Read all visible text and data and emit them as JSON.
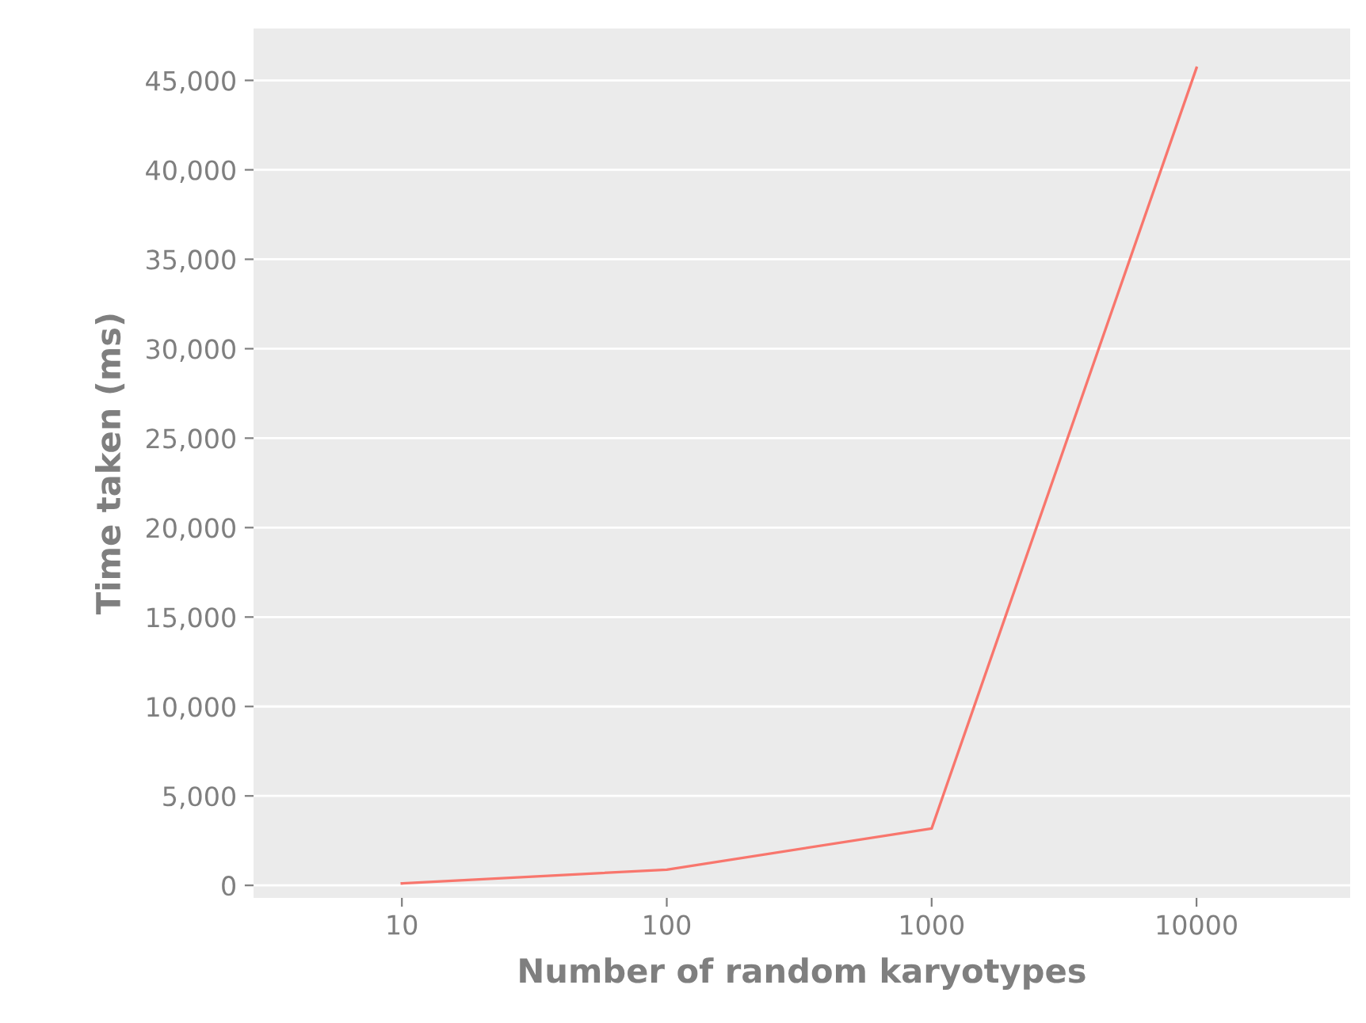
{
  "chart_data": {
    "type": "line",
    "xlabel": "Number of random karyotypes",
    "ylabel": "Time taken (ms)",
    "categories": [
      "10",
      "100",
      "1000",
      "10000"
    ],
    "series": [
      {
        "color": "#f8766d",
        "values": [
          110,
          880,
          3180,
          45700
        ]
      }
    ],
    "ylim": [
      -700,
      47900
    ],
    "yticks": [
      {
        "value": 0,
        "label": "0"
      },
      {
        "value": 5000,
        "label": "5,000"
      },
      {
        "value": 10000,
        "label": "10,000"
      },
      {
        "value": 15000,
        "label": "15,000"
      },
      {
        "value": 20000,
        "label": "20,000"
      },
      {
        "value": 25000,
        "label": "25,000"
      },
      {
        "value": 30000,
        "label": "30,000"
      },
      {
        "value": 35000,
        "label": "35,000"
      },
      {
        "value": 40000,
        "label": "40,000"
      },
      {
        "value": 45000,
        "label": "45,000"
      }
    ],
    "grid": "y",
    "marker": "none",
    "line_style": "solid",
    "legend": false
  }
}
